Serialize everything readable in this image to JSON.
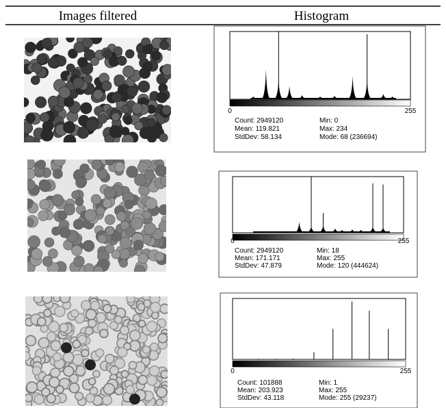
{
  "header": {
    "col1": "Images filtered",
    "col2": "Histogram"
  },
  "rows": [
    {
      "histogram": {
        "axis_min": 0,
        "axis_max": 255,
        "stats": [
          [
            "Count: 2949120",
            "Min: 0"
          ],
          [
            "Mean: 119.821",
            "Max: 234"
          ],
          [
            "StdDev: 58.134",
            "Mode: 68 (236694)"
          ]
        ]
      }
    },
    {
      "histogram": {
        "axis_min": 0,
        "axis_max": 255,
        "stats": [
          [
            "Count: 2949120",
            "Min: 18"
          ],
          [
            "Mean: 171.171",
            "Max: 255"
          ],
          [
            "StdDev: 47.879",
            "Mode: 120 (444624)"
          ]
        ]
      }
    },
    {
      "histogram": {
        "axis_min": 0,
        "axis_max": 255,
        "stats": [
          [
            "Count: 101888",
            "Min: 1"
          ],
          [
            "Mean: 203.923",
            "Max: 255"
          ],
          [
            "StdDev: 43.118",
            "Mode: 255 (29237)"
          ]
        ]
      }
    }
  ]
}
